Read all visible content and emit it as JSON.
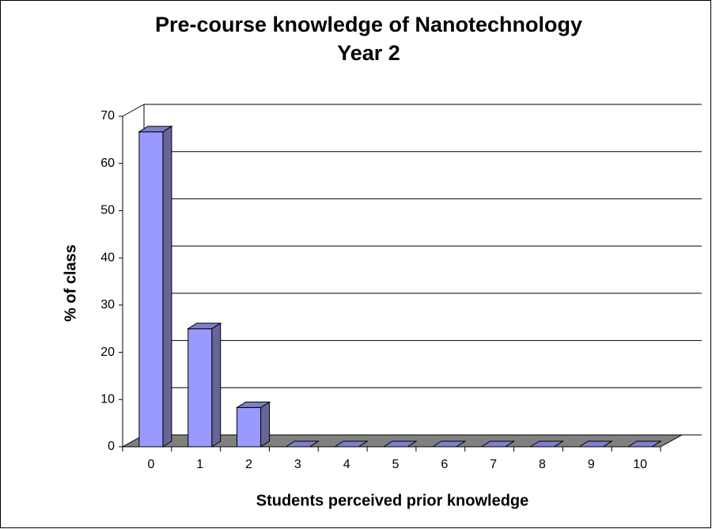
{
  "chart_data": {
    "type": "bar3d",
    "title": [
      "Pre-course knowledge of Nanotechnology",
      "Year 2"
    ],
    "x_label": "Students perceived prior knowledge",
    "y_label": "% of class",
    "categories": [
      "0",
      "1",
      "2",
      "3",
      "4",
      "5",
      "6",
      "7",
      "8",
      "9",
      "10"
    ],
    "values": [
      66.7,
      25,
      8.3,
      0,
      0,
      0,
      0,
      0,
      0,
      0,
      0
    ],
    "color": "#9999ff",
    "ylim": [
      0,
      70
    ],
    "yticks": [
      0,
      10,
      20,
      30,
      40,
      50,
      60,
      70
    ],
    "grid": true
  }
}
